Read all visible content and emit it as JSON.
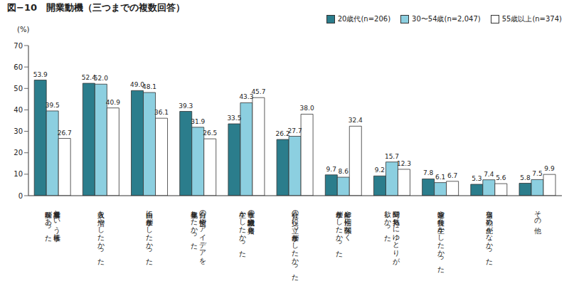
{
  "chart_data": {
    "type": "bar",
    "title": "図−10　開業動機（三つまでの複数回答）",
    "y_label": "(%)",
    "categories": [
      "事業経営という仕事に\n興味があった",
      "収入を増やしたかった",
      "自由に仕事がしたかった",
      "自分の技術やアイデアを\n事業化したかった",
      "仕事の経験・知識や資格を\n生かしたかった",
      "社会の役に立つ仕事がしたかった",
      "年齢や性別に関係なく\n仕事がしたかった",
      "時間や気持ちにゆとりが\n欲しかった",
      "趣味や特技を生かしたかった",
      "適当な勤め先がなかった",
      "その他"
    ],
    "series": [
      {
        "name": "20歳代(n=206)",
        "color": "#2b7d8c",
        "values": [
          53.9,
          52.4,
          49.0,
          39.3,
          33.5,
          26.2,
          9.7,
          9.2,
          7.8,
          5.3,
          5.8
        ],
        "value_labels": [
          "53.9",
          "52.4",
          "49.0",
          "39.3",
          "33.5",
          "26.2",
          "9.7",
          "9.2",
          "7.8",
          "5.3",
          "5.8"
        ]
      },
      {
        "name": "30〜54歳(n=2,047)",
        "color": "#8ccfe0",
        "values": [
          39.5,
          52.0,
          48.1,
          31.9,
          43.3,
          27.7,
          8.6,
          15.7,
          6.1,
          7.4,
          7.5
        ],
        "value_labels": [
          "39.5",
          "52.0",
          "48.1",
          "31.9",
          "43.3",
          "27.7",
          "8.6",
          "15.7",
          "6.1",
          "7.4",
          "7.5"
        ]
      },
      {
        "name": "55歳以上(n=374)",
        "color": "#ffffff",
        "values": [
          26.7,
          40.9,
          36.1,
          26.5,
          45.7,
          38.0,
          32.4,
          12.3,
          6.7,
          5.6,
          9.9
        ],
        "value_labels": [
          "26.7",
          "40.9",
          "36.1",
          "26.5",
          "45.7",
          "38.0",
          "32.4",
          "12.3",
          "6.7",
          "5.6",
          "9.9"
        ]
      }
    ],
    "ylim": [
      0,
      70
    ],
    "yticks": [
      0,
      10,
      20,
      30,
      40,
      50,
      60,
      70
    ],
    "grid": false,
    "legend": "top",
    "data_labels": true
  }
}
